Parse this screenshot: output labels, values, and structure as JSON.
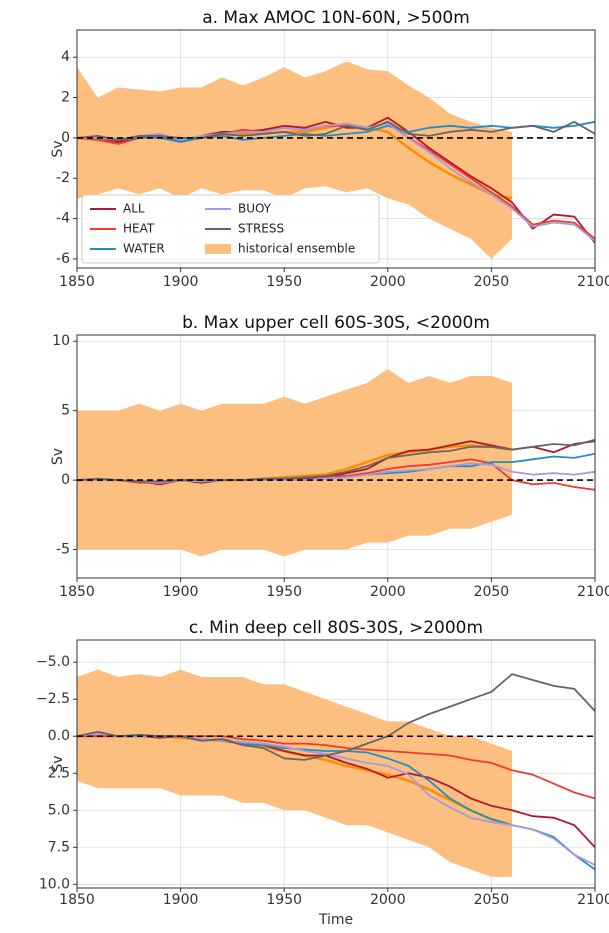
{
  "chart_data": [
    {
      "type": "line",
      "title": "a. Max AMOC 10N-60N, >500m",
      "ylabel": "Sv",
      "x": [
        1850,
        1860,
        1870,
        1880,
        1890,
        1900,
        1910,
        1920,
        1930,
        1940,
        1950,
        1960,
        1970,
        1980,
        1990,
        2000,
        2010,
        2020,
        2030,
        2040,
        2050,
        2060,
        2070,
        2080,
        2090,
        2100
      ],
      "series": [
        {
          "name": "ALL",
          "color": "#b2182b",
          "values": [
            0,
            0,
            -0.2,
            0,
            0.2,
            -0.2,
            0.1,
            0.3,
            0.3,
            0.4,
            0.6,
            0.5,
            0.8,
            0.5,
            0.5,
            1.0,
            0.3,
            -0.5,
            -1.2,
            -1.9,
            -2.5,
            -3.2,
            -4.5,
            -3.8,
            -3.9,
            -5.2
          ]
        },
        {
          "name": "HEAT",
          "color": "#ef3b2c",
          "values": [
            0,
            -0.1,
            -0.3,
            0,
            0.1,
            -0.1,
            0.1,
            0.2,
            0.4,
            0.3,
            0.5,
            0.4,
            0.6,
            0.6,
            0.4,
            0.8,
            0.0,
            -0.6,
            -1.3,
            -2.0,
            -2.7,
            -3.4,
            -4.3,
            -4.1,
            -4.2,
            -5.0
          ]
        },
        {
          "name": "WATER",
          "color": "#1f8fc6",
          "values": [
            0,
            0,
            -0.1,
            0,
            0,
            -0.2,
            0,
            0.1,
            -0.1,
            0,
            0.1,
            0.2,
            0.1,
            0.2,
            0.3,
            0.6,
            0.3,
            0.5,
            0.6,
            0.5,
            0.6,
            0.5,
            0.6,
            0.5,
            0.6,
            0.8
          ]
        },
        {
          "name": "BUOY",
          "color": "#a59ae0",
          "values": [
            0,
            0,
            -0.1,
            0.1,
            0.2,
            -0.1,
            0.1,
            0.2,
            0.3,
            0.3,
            0.5,
            0.4,
            0.6,
            0.7,
            0.5,
            0.7,
            0.0,
            -0.7,
            -1.5,
            -2.2,
            -2.8,
            -3.5,
            -4.4,
            -4.2,
            -4.3,
            -5.1
          ]
        },
        {
          "name": "STRESS",
          "color": "#666666",
          "values": [
            0,
            0.1,
            -0.1,
            0.1,
            0.1,
            0,
            0,
            0.2,
            0.1,
            0.2,
            0.3,
            0.1,
            0.2,
            0.6,
            0.4,
            0.8,
            0.2,
            0.1,
            0.3,
            0.4,
            0.3,
            0.5,
            0.6,
            0.3,
            0.8,
            0.2
          ]
        }
      ],
      "ensemble": {
        "name": "historical ensemble",
        "color": "#fdbf80",
        "mean_color": "#ff8c00",
        "x": [
          1850,
          1860,
          1870,
          1880,
          1890,
          1900,
          1910,
          1920,
          1930,
          1940,
          1950,
          1960,
          1970,
          1980,
          1990,
          2000,
          2010,
          2020,
          2030,
          2040,
          2050,
          2060
        ],
        "upper": [
          3.5,
          2.0,
          2.5,
          2.4,
          2.3,
          2.5,
          2.5,
          3.0,
          2.6,
          3.0,
          3.5,
          3.0,
          3.3,
          3.8,
          3.4,
          3.3,
          2.6,
          2.0,
          1.2,
          0.8,
          0.5,
          0.3
        ],
        "lower": [
          -3.0,
          -2.8,
          -2.5,
          -2.8,
          -2.5,
          -3.0,
          -2.5,
          -2.8,
          -2.6,
          -2.6,
          -3.0,
          -2.5,
          -2.4,
          -2.7,
          -2.5,
          -3.0,
          -3.3,
          -4.0,
          -4.5,
          -5.0,
          -6.0,
          -5.0
        ],
        "mean": [
          0,
          -0.1,
          -0.2,
          0,
          0.1,
          -0.1,
          0,
          0.1,
          0.2,
          0.2,
          0.3,
          0.3,
          0.5,
          0.7,
          0.5,
          0.3,
          -0.5,
          -1.2,
          -1.8,
          -2.3,
          -2.8,
          -3.0
        ]
      },
      "hline": 0,
      "xlim": [
        1850,
        2100
      ],
      "xticks": [
        1850,
        1900,
        1950,
        2000,
        2050,
        2100
      ],
      "ylim": [
        -6.45,
        5.35
      ],
      "yticks": [
        -6,
        -4,
        -2,
        0,
        2,
        4
      ],
      "grid": true,
      "legend": "lower left"
    },
    {
      "type": "line",
      "title": "b. Max upper cell 60S-30S, <2000m",
      "ylabel": "Sv",
      "x": [
        1850,
        1860,
        1870,
        1880,
        1890,
        1900,
        1910,
        1920,
        1930,
        1940,
        1950,
        1960,
        1970,
        1980,
        1990,
        2000,
        2010,
        2020,
        2030,
        2040,
        2050,
        2060,
        2070,
        2080,
        2090,
        2100
      ],
      "series": [
        {
          "color": "#b2182b",
          "values": [
            0,
            0,
            0,
            -0.1,
            -0.3,
            0,
            -0.2,
            0,
            0,
            0,
            0,
            0.1,
            0.2,
            0.5,
            0.8,
            1.6,
            2.1,
            2.2,
            2.5,
            2.8,
            2.5,
            2.2,
            2.4,
            2.0,
            2.6,
            2.8
          ]
        },
        {
          "color": "#ef3b2c",
          "values": [
            0,
            0,
            0,
            -0.2,
            -0.2,
            0,
            -0.1,
            0,
            0,
            0,
            0.1,
            0,
            0.2,
            0.3,
            0.5,
            0.8,
            1.0,
            1.1,
            1.3,
            1.5,
            1.2,
            0,
            -0.3,
            -0.2,
            -0.5,
            -0.7
          ]
        },
        {
          "color": "#1f8fc6",
          "values": [
            0,
            0,
            0,
            -0.1,
            -0.2,
            0,
            -0.1,
            0,
            0,
            0,
            0,
            0,
            0.1,
            0.2,
            0.4,
            0.5,
            0.6,
            0.8,
            1.0,
            1.0,
            1.3,
            1.3,
            1.5,
            1.7,
            1.6,
            1.9
          ]
        },
        {
          "color": "#a59ae0",
          "values": [
            0,
            0,
            0,
            -0.1,
            -0.2,
            0,
            -0.1,
            0,
            0,
            0,
            0,
            0,
            0.1,
            0.2,
            0.4,
            0.6,
            0.7,
            0.8,
            1.0,
            1.2,
            1.1,
            0.6,
            0.4,
            0.5,
            0.4,
            0.6
          ]
        },
        {
          "color": "#666666",
          "values": [
            0,
            0.1,
            0,
            -0.1,
            -0.1,
            0,
            0,
            0,
            0,
            0.1,
            0.1,
            0.2,
            0.3,
            0.6,
            1.0,
            1.6,
            1.8,
            2.0,
            2.1,
            2.4,
            2.4,
            2.2,
            2.4,
            2.6,
            2.5,
            2.9
          ]
        }
      ],
      "ensemble": {
        "color": "#fdbf80",
        "mean_color": "#ff8c00",
        "x": [
          1850,
          1860,
          1870,
          1880,
          1890,
          1900,
          1910,
          1920,
          1930,
          1940,
          1950,
          1960,
          1970,
          1980,
          1990,
          2000,
          2010,
          2020,
          2030,
          2040,
          2050,
          2060
        ],
        "upper": [
          5,
          5,
          5,
          5.5,
          5,
          5.5,
          5,
          5.5,
          5.5,
          5.5,
          6,
          5.5,
          6,
          6.5,
          7,
          8,
          7,
          7.5,
          7,
          7.5,
          7.5,
          7
        ],
        "lower": [
          -5,
          -5,
          -5,
          -5,
          -5,
          -5,
          -5.5,
          -5,
          -5,
          -5,
          -5.5,
          -5,
          -5,
          -5,
          -4.5,
          -4.5,
          -4,
          -4,
          -3.5,
          -3.5,
          -3,
          -2.5
        ],
        "mean": [
          0,
          0,
          0,
          -0.1,
          -0.1,
          0,
          0,
          0,
          0,
          0.1,
          0.2,
          0.3,
          0.4,
          0.8,
          1.3,
          1.8,
          2.0,
          2.2,
          2.4,
          2.5,
          2.4,
          2.2
        ]
      },
      "hline": 0,
      "xlim": [
        1850,
        2100
      ],
      "xticks": [
        1850,
        1900,
        1950,
        2000,
        2050,
        2100
      ],
      "ylim": [
        -7.05,
        10.45
      ],
      "yticks": [
        -5,
        0,
        5,
        10
      ],
      "grid": true
    },
    {
      "type": "line",
      "title": "c. Min deep cell 80S-30S, >2000m",
      "ylabel": "Sv",
      "xlabel": "Time",
      "x": [
        1850,
        1860,
        1870,
        1880,
        1890,
        1900,
        1910,
        1920,
        1930,
        1940,
        1950,
        1960,
        1970,
        1980,
        1990,
        2000,
        2010,
        2020,
        2030,
        2040,
        2050,
        2060,
        2070,
        2080,
        2090,
        2100
      ],
      "series": [
        {
          "color": "#b2182b",
          "values": [
            0,
            -0.2,
            0,
            0,
            0.1,
            0,
            0.3,
            0.2,
            0.5,
            0.6,
            1.0,
            1.3,
            1.3,
            1.8,
            2.2,
            2.8,
            2.5,
            2.8,
            3.4,
            4.2,
            4.7,
            5.0,
            5.4,
            5.5,
            6.0,
            7.5
          ]
        },
        {
          "color": "#ef3b2c",
          "values": [
            0,
            0,
            0,
            0,
            0,
            0,
            0,
            0,
            0.2,
            0.3,
            0.5,
            0.5,
            0.6,
            0.8,
            0.9,
            1.0,
            1.1,
            1.2,
            1.3,
            1.6,
            1.8,
            2.3,
            2.6,
            3.2,
            3.8,
            4.2
          ]
        },
        {
          "color": "#1f8fc6",
          "values": [
            0,
            -0.2,
            0,
            0,
            0,
            0,
            0.2,
            0.3,
            0.5,
            0.6,
            0.8,
            0.9,
            1.0,
            1.0,
            1.1,
            1.5,
            2.0,
            3.0,
            4.2,
            5.0,
            5.6,
            6.0,
            6.3,
            6.8,
            8.0,
            9.0
          ]
        },
        {
          "color": "#a59ae0",
          "values": [
            0,
            -0.2,
            0,
            0,
            0,
            0,
            0.2,
            0.3,
            0.4,
            0.5,
            0.7,
            1.0,
            1.2,
            1.5,
            1.8,
            2.0,
            2.6,
            4.0,
            4.8,
            5.5,
            5.8,
            6.0,
            6.3,
            6.9,
            8.0,
            8.7
          ]
        },
        {
          "color": "#666666",
          "values": [
            0,
            -0.3,
            0,
            -0.1,
            0,
            0,
            0.3,
            0.2,
            0.6,
            0.8,
            1.5,
            1.6,
            1.3,
            1.0,
            0.5,
            0,
            -0.9,
            -1.5,
            -2.0,
            -2.5,
            -3.0,
            -4.2,
            -3.8,
            -3.4,
            -3.2,
            -1.7
          ]
        }
      ],
      "ensemble": {
        "color": "#fdbf80",
        "mean_color": "#ff8c00",
        "x": [
          1850,
          1860,
          1870,
          1880,
          1890,
          1900,
          1910,
          1920,
          1930,
          1940,
          1950,
          1960,
          1970,
          1980,
          1990,
          2000,
          2010,
          2020,
          2030,
          2040,
          2050,
          2060
        ],
        "upper": [
          3,
          3.5,
          3.5,
          3.5,
          3.5,
          4,
          4,
          4,
          4.5,
          4.5,
          5,
          5,
          5.5,
          6,
          6,
          6.5,
          7,
          7.5,
          8.5,
          9,
          9.5,
          9.5
        ],
        "lower": [
          -4,
          -4.5,
          -4,
          -4.2,
          -4,
          -4.5,
          -4,
          -4,
          -4,
          -3.5,
          -3.5,
          -3,
          -2.5,
          -2,
          -1.5,
          -1,
          -1,
          -0.5,
          0,
          0,
          0.5,
          1
        ],
        "mean": [
          0,
          0,
          0,
          0,
          0,
          0.1,
          0.2,
          0.3,
          0.5,
          0.7,
          1.0,
          1.3,
          1.6,
          2.0,
          2.3,
          2.6,
          3.0,
          3.6,
          4.3,
          5.0,
          5.6,
          6.0
        ]
      },
      "hline": 0,
      "xlim": [
        1850,
        2100
      ],
      "xticks": [
        1850,
        1900,
        1950,
        2000,
        2050,
        2100
      ],
      "ylim": [
        10.25,
        -6.5
      ],
      "yticks": [
        {
          "value": -5,
          "label": "−5.0"
        },
        {
          "value": -2.5,
          "label": "−2.5"
        },
        {
          "value": 0,
          "label": "0.0"
        },
        {
          "value": 2.5,
          "label": "2.5"
        },
        {
          "value": 5,
          "label": "5.0"
        },
        {
          "value": 7.5,
          "label": "7.5"
        },
        {
          "value": 10,
          "label": "10.0"
        }
      ],
      "grid": true
    }
  ]
}
